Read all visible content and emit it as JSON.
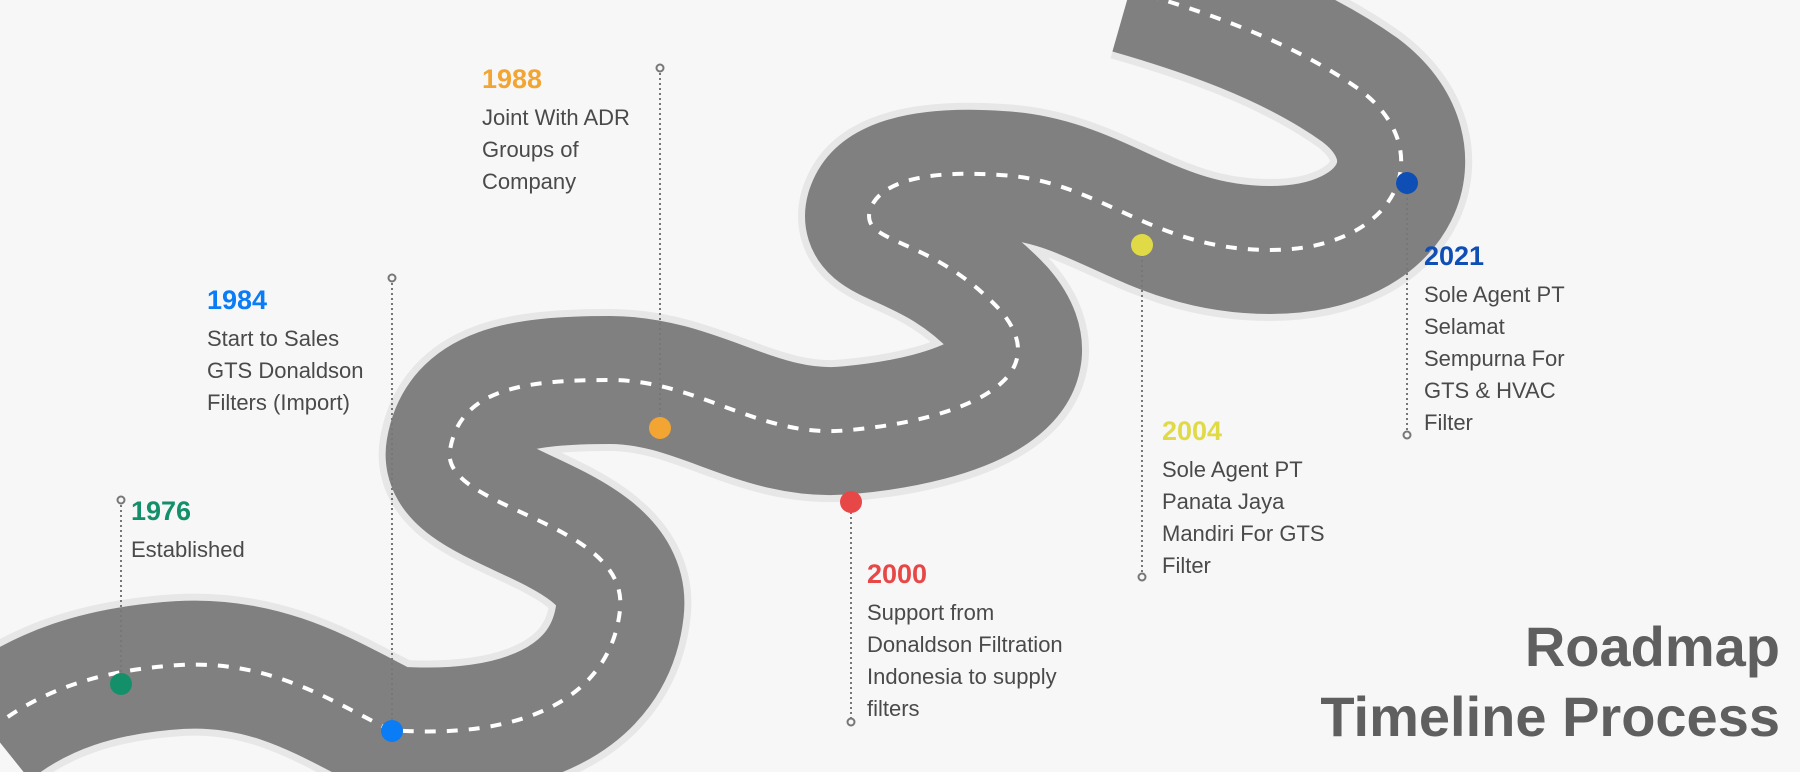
{
  "colors": {
    "road": "#808080",
    "road_outline": "#e7e7e7",
    "lane": "#ffffff",
    "connector": "#777777"
  },
  "milestones": [
    {
      "year": "1976",
      "color": "#13906a",
      "lines": [
        "Established"
      ]
    },
    {
      "year": "1984",
      "color": "#0a7cf6",
      "lines": [
        "Start to Sales",
        "GTS Donaldson",
        "Filters (Import)"
      ]
    },
    {
      "year": "1988",
      "color": "#f2a532",
      "lines": [
        "Joint With ADR",
        "Groups of",
        "Company"
      ]
    },
    {
      "year": "2000",
      "color": "#e84747",
      "lines": [
        "Support from",
        "Donaldson Filtration",
        "Indonesia to supply",
        "filters"
      ]
    },
    {
      "year": "2004",
      "color": "#e1da47",
      "lines": [
        "Sole Agent PT",
        "Panata Jaya",
        "Mandiri For GTS",
        "Filter"
      ]
    },
    {
      "year": "2021",
      "color": "#0e4eb5",
      "lines": [
        "Sole Agent PT",
        "Selamat",
        "Sempurna For",
        "GTS & HVAC",
        "Filter"
      ]
    }
  ],
  "heading": {
    "line1": "Roadmap",
    "line2": "Timeline Process"
  }
}
